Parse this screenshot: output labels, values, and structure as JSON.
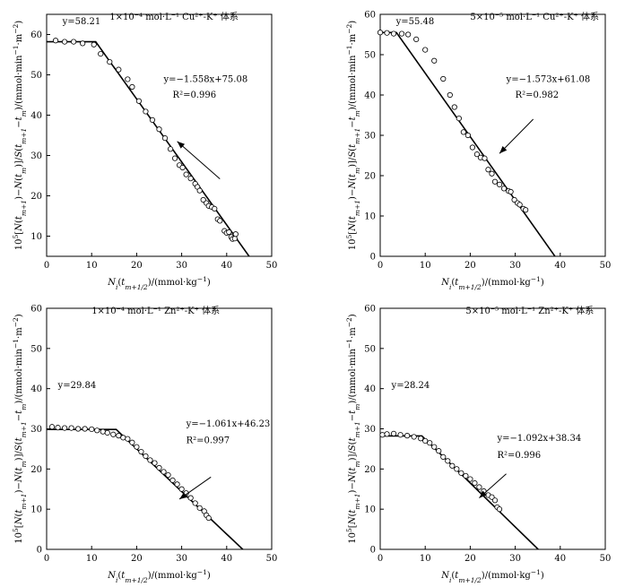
{
  "chart_data": [
    {
      "type": "scatter",
      "title": "1×10⁻⁴ mol·L⁻¹ Cu²⁺-K⁺ 体系",
      "xlabel": "Ni(tm+1/2)/(mmol·kg⁻¹)",
      "ylabel": "10⁵[N(tm+1)−N(tm)]/S(tm+1−tm)/(mmol·min⁻¹·m⁻²)",
      "xlim": [
        0,
        50
      ],
      "ylim": [
        5,
        65
      ],
      "xticks": [
        "0",
        "10",
        "20",
        "30",
        "40",
        "50"
      ],
      "yticks": [
        "10",
        "20",
        "30",
        "40",
        "50",
        "60"
      ],
      "plateau_label": "y=58.21",
      "fit_label": "y=−1.558x+75.08",
      "r2_label": "R²=0.996",
      "plateau_y": 58.21,
      "slope": -1.558,
      "intercept": 75.08,
      "knee_x": 10.9,
      "line_end_x": 48,
      "points": [
        [
          2,
          58.5
        ],
        [
          4,
          58.2
        ],
        [
          6,
          58.2
        ],
        [
          8,
          57.8
        ],
        [
          10.5,
          57.5
        ],
        [
          12,
          55.2
        ],
        [
          14,
          53.2
        ],
        [
          16,
          51.3
        ],
        [
          18,
          48.9
        ],
        [
          19,
          47
        ],
        [
          20.5,
          43.5
        ],
        [
          22,
          40.9
        ],
        [
          23.5,
          38.8
        ],
        [
          25,
          36.5
        ],
        [
          26.3,
          34.3
        ],
        [
          27.5,
          31.6
        ],
        [
          28.5,
          29.3
        ],
        [
          29.5,
          27.6
        ],
        [
          30.2,
          27
        ],
        [
          31,
          25.3
        ],
        [
          32,
          24.3
        ],
        [
          33,
          23
        ],
        [
          33.5,
          22.2
        ],
        [
          34,
          21.3
        ],
        [
          34.8,
          19
        ],
        [
          35.5,
          18.2
        ],
        [
          36,
          17.5
        ],
        [
          36.7,
          17.2
        ],
        [
          37.3,
          16.8
        ],
        [
          38,
          14.2
        ],
        [
          38.5,
          13.8
        ],
        [
          39.5,
          11.3
        ],
        [
          40,
          10.8
        ],
        [
          40.5,
          11
        ],
        [
          41,
          9.8
        ],
        [
          41.3,
          9.3
        ],
        [
          41.8,
          9.4
        ],
        [
          42,
          10.5
        ]
      ],
      "arrow": {
        "from": [
          38.5,
          24.2
        ],
        "to": [
          29,
          33.5
        ]
      }
    },
    {
      "type": "scatter",
      "title": "5×10⁻⁵ mol·L⁻¹ Cu²⁺-K⁺ 体系",
      "xlabel": "Ni(tm+1/2)/(mmol·kg⁻¹)",
      "ylabel": "10⁵[N(tm+1)−N(tm)]/S(tm+1−tm)/(mmol·min⁻¹·m⁻²)",
      "xlim": [
        0,
        50
      ],
      "ylim": [
        0,
        60
      ],
      "xticks": [
        "0",
        "10",
        "20",
        "30",
        "40",
        "50"
      ],
      "yticks": [
        "0",
        "10",
        "20",
        "30",
        "40",
        "50",
        "60"
      ],
      "plateau_label": "y=55.48",
      "fit_label": "y=−1.573x+61.08",
      "r2_label": "R²=0.982",
      "plateau_y": 55.48,
      "slope": -1.573,
      "intercept": 61.08,
      "knee_x": 3.6,
      "line_end_x": 38.8,
      "points": [
        [
          0,
          55.5
        ],
        [
          1.5,
          55.4
        ],
        [
          3,
          55.2
        ],
        [
          4.8,
          55.2
        ],
        [
          6.2,
          55
        ],
        [
          8,
          53.8
        ],
        [
          10,
          51.2
        ],
        [
          12,
          48.5
        ],
        [
          14,
          44
        ],
        [
          15.5,
          40
        ],
        [
          16.5,
          37
        ],
        [
          17.5,
          34.2
        ],
        [
          18.5,
          30.8
        ],
        [
          19.5,
          30
        ],
        [
          20.5,
          27
        ],
        [
          21.5,
          25.3
        ],
        [
          22.3,
          24.5
        ],
        [
          23.2,
          24.3
        ],
        [
          24,
          21.5
        ],
        [
          24.8,
          20.5
        ],
        [
          25.5,
          18.5
        ],
        [
          26.5,
          17.8
        ],
        [
          27.5,
          16.8
        ],
        [
          28.5,
          16.2
        ],
        [
          29,
          16
        ],
        [
          29.8,
          14
        ],
        [
          30.5,
          13.2
        ],
        [
          31,
          12.8
        ],
        [
          31.8,
          11.8
        ],
        [
          32.3,
          11.5
        ]
      ],
      "arrow": {
        "from": [
          34,
          34
        ],
        "to": [
          26.5,
          25.5
        ]
      }
    },
    {
      "type": "scatter",
      "title": "1×10⁻⁴ mol·L⁻¹ Zn²⁺-K⁺ 体系",
      "xlabel": "Ni(tm+1/2)/(mmol·kg⁻¹)",
      "ylabel": "10⁵[N(tm+1)−N(tm)]/S(tm+1−tm)/(mmol·min⁻¹·m⁻²)",
      "xlim": [
        0,
        50
      ],
      "ylim": [
        0,
        60
      ],
      "xticks": [
        "0",
        "10",
        "20",
        "30",
        "40",
        "50"
      ],
      "yticks": [
        "0",
        "10",
        "20",
        "30",
        "40",
        "50",
        "60"
      ],
      "plateau_label": "y=29.84",
      "fit_label": "y=−1.061x+46.23",
      "r2_label": "R²=0.997",
      "plateau_y": 29.84,
      "slope": -1.061,
      "intercept": 46.23,
      "knee_x": 15.45,
      "line_end_x": 43.6,
      "points": [
        [
          1.2,
          30.5
        ],
        [
          2.5,
          30.3
        ],
        [
          4,
          30.2
        ],
        [
          5.5,
          30.2
        ],
        [
          7,
          30
        ],
        [
          8.5,
          30
        ],
        [
          10,
          29.9
        ],
        [
          11.2,
          29.6
        ],
        [
          12.5,
          29.3
        ],
        [
          13.5,
          29
        ],
        [
          14.8,
          28.6
        ],
        [
          16,
          28.3
        ],
        [
          17,
          27.8
        ],
        [
          18,
          27.5
        ],
        [
          19,
          26.6
        ],
        [
          20,
          25.5
        ],
        [
          21,
          24.3
        ],
        [
          22,
          23.2
        ],
        [
          23,
          22.2
        ],
        [
          24,
          21.5
        ],
        [
          25,
          20.3
        ],
        [
          26,
          19.3
        ],
        [
          27,
          18.5
        ],
        [
          28,
          17.2
        ],
        [
          29,
          16.2
        ],
        [
          30,
          15
        ],
        [
          31,
          14
        ],
        [
          32,
          12.8
        ],
        [
          33,
          11.5
        ],
        [
          34,
          10.3
        ],
        [
          35,
          9.5
        ],
        [
          35.5,
          8.5
        ],
        [
          36,
          7.8
        ]
      ],
      "arrow": {
        "from": [
          36.5,
          18
        ],
        "to": [
          29.5,
          12.5
        ]
      }
    },
    {
      "type": "scatter",
      "title": "5×10⁻⁵ mol·L⁻¹ Zn²⁺-K⁺ 体系",
      "xlabel": "Ni(tm+1/2)/(mmol·kg⁻¹)",
      "ylabel": "10⁵[N(tm+1)−N(tm)]/S(tm+1−tm)/(mmol·min⁻¹·m⁻²)",
      "xlim": [
        0,
        50
      ],
      "ylim": [
        0,
        60
      ],
      "xticks": [
        "0",
        "10",
        "20",
        "30",
        "40",
        "50"
      ],
      "yticks": [
        "0",
        "10",
        "20",
        "30",
        "40",
        "50",
        "60"
      ],
      "plateau_label": "y=28.24",
      "fit_label": "y=−1.092x+38.34",
      "r2_label": "R²=0.996",
      "plateau_y": 28.24,
      "slope": -1.092,
      "intercept": 38.34,
      "knee_x": 9.25,
      "line_end_x": 35.1,
      "points": [
        [
          0.5,
          28.5
        ],
        [
          1.5,
          28.7
        ],
        [
          3,
          28.8
        ],
        [
          4.5,
          28.5
        ],
        [
          6,
          28.3
        ],
        [
          7.5,
          28
        ],
        [
          9,
          27.6
        ],
        [
          10,
          27
        ],
        [
          11,
          26.5
        ],
        [
          12,
          25.5
        ],
        [
          13,
          24.5
        ],
        [
          14,
          23
        ],
        [
          15,
          22
        ],
        [
          16,
          20.8
        ],
        [
          17,
          20
        ],
        [
          18,
          19
        ],
        [
          19,
          18.3
        ],
        [
          20,
          17.5
        ],
        [
          21,
          16.5
        ],
        [
          22,
          15.5
        ],
        [
          23,
          14.5
        ],
        [
          24,
          13.5
        ],
        [
          24.8,
          13
        ],
        [
          25.5,
          12.2
        ],
        [
          26,
          10.5
        ],
        [
          26.5,
          10
        ]
      ],
      "arrow": {
        "from": [
          28,
          18.8
        ],
        "to": [
          22,
          12.8
        ]
      }
    }
  ]
}
